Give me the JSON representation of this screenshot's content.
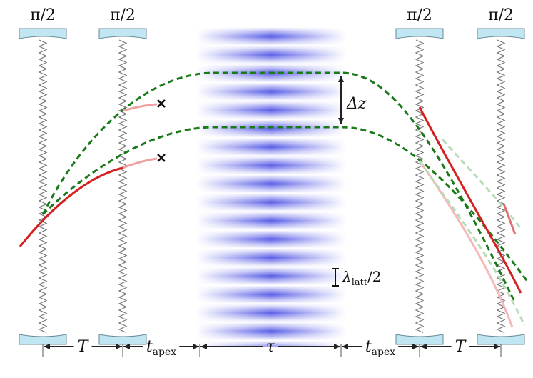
{
  "pulses": [
    {
      "label": "π/2"
    },
    {
      "label": "π/2"
    },
    {
      "label": "π/2"
    },
    {
      "label": "π/2"
    }
  ],
  "separation": {
    "label": "Δz"
  },
  "lattice": {
    "main": "λ",
    "sub": "latt",
    "suffix": "/2"
  },
  "intervals": [
    {
      "main": "T"
    },
    {
      "main": "t",
      "sub": "apex"
    },
    {
      "main": "τ"
    },
    {
      "main": "t",
      "sub": "apex"
    },
    {
      "main": "T"
    }
  ]
}
